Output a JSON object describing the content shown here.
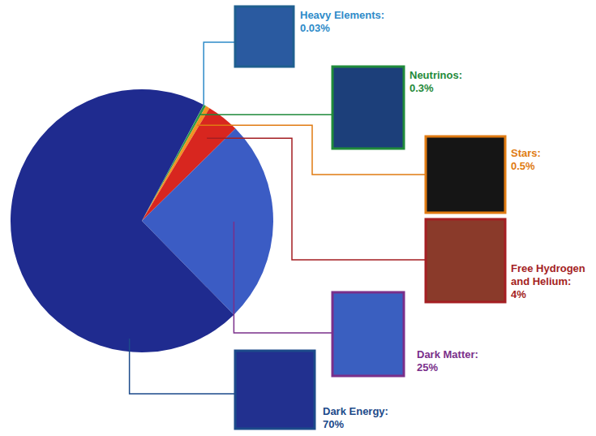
{
  "chart_data": {
    "type": "pie",
    "categories": [
      "Heavy Elements:",
      "Neutrinos:",
      "Stars:",
      "Free Hydrogen and Helium:",
      "Dark Matter:",
      "Dark Energy:"
    ],
    "values": [
      0.03,
      0.3,
      0.5,
      4,
      25,
      70
    ],
    "value_labels": [
      "0.03%",
      "0.3%",
      "0.5%",
      "4%",
      "25%",
      "70%"
    ],
    "colors": [
      "#3fa9e0",
      "#2f9a48",
      "#f29222",
      "#d8261f",
      "#3b5cc4",
      "#1f2b8f"
    ],
    "data_labels": true
  }
}
